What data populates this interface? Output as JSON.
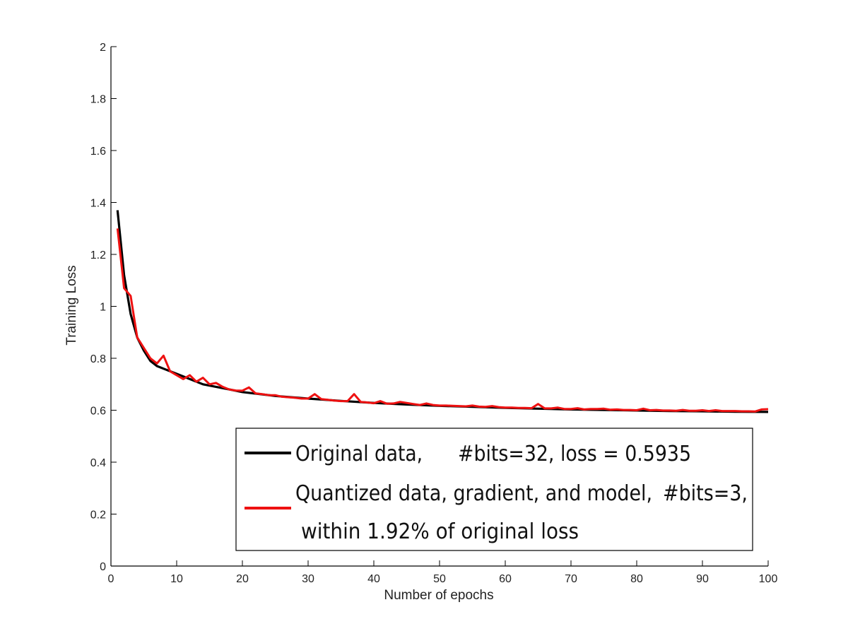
{
  "chart_data": {
    "type": "line",
    "title": "",
    "xlabel": "Number of epochs",
    "ylabel": "Training Loss",
    "xlim": [
      0,
      100
    ],
    "ylim": [
      0,
      2
    ],
    "x_ticks": [
      "0",
      "10",
      "20",
      "30",
      "40",
      "50",
      "60",
      "70",
      "80",
      "90",
      "100"
    ],
    "y_ticks": [
      "0",
      "0.2",
      "0.4",
      "0.6",
      "0.8",
      "1",
      "1.2",
      "1.4",
      "1.6",
      "1.8",
      "2"
    ],
    "grid": false,
    "legend_position": "bottom-right",
    "series": [
      {
        "name": "Original data, #bits=32, loss = 0.5935",
        "label_part1": "Original data,",
        "label_part2": "#bits=32, loss = 0.5935",
        "color": "#000000",
        "x": [
          1,
          2,
          3,
          4,
          5,
          6,
          7,
          8,
          10,
          12,
          14,
          16,
          18,
          20,
          25,
          30,
          35,
          40,
          45,
          50,
          55,
          60,
          65,
          70,
          75,
          80,
          85,
          90,
          95,
          100
        ],
        "values": [
          1.37,
          1.12,
          0.97,
          0.88,
          0.83,
          0.79,
          0.77,
          0.76,
          0.74,
          0.72,
          0.7,
          0.69,
          0.68,
          0.67,
          0.655,
          0.645,
          0.636,
          0.628,
          0.622,
          0.617,
          0.613,
          0.609,
          0.606,
          0.603,
          0.601,
          0.599,
          0.597,
          0.596,
          0.594,
          0.5935
        ]
      },
      {
        "name": "Quantized data, gradient, and model, #bits=3, within 1.92% of original loss",
        "label_line1": "Quantized data, gradient, and model,",
        "label_line1b": "#bits=3,",
        "label_line2": "within 1.92% of original loss",
        "color": "#ee1111",
        "x": [
          1,
          2,
          3,
          4,
          5,
          6,
          7,
          8,
          9,
          10,
          11,
          12,
          13,
          14,
          15,
          16,
          17,
          18,
          19,
          20,
          21,
          22,
          23,
          24,
          25,
          26,
          27,
          28,
          29,
          30,
          31,
          32,
          33,
          34,
          35,
          36,
          37,
          38,
          39,
          40,
          41,
          42,
          43,
          44,
          45,
          46,
          47,
          48,
          49,
          50,
          51,
          52,
          53,
          54,
          55,
          56,
          57,
          58,
          59,
          60,
          61,
          62,
          63,
          64,
          65,
          66,
          67,
          68,
          69,
          70,
          71,
          72,
          73,
          74,
          75,
          76,
          77,
          78,
          79,
          80,
          81,
          82,
          83,
          84,
          85,
          86,
          87,
          88,
          89,
          90,
          91,
          92,
          93,
          94,
          95,
          96,
          97,
          98,
          99,
          100
        ],
        "values": [
          1.3,
          1.07,
          1.04,
          0.88,
          0.84,
          0.8,
          0.78,
          0.81,
          0.75,
          0.735,
          0.72,
          0.735,
          0.71,
          0.725,
          0.7,
          0.705,
          0.69,
          0.68,
          0.676,
          0.675,
          0.688,
          0.665,
          0.662,
          0.658,
          0.658,
          0.652,
          0.65,
          0.648,
          0.645,
          0.645,
          0.662,
          0.643,
          0.64,
          0.637,
          0.635,
          0.635,
          0.662,
          0.632,
          0.63,
          0.627,
          0.635,
          0.625,
          0.626,
          0.632,
          0.628,
          0.624,
          0.62,
          0.626,
          0.62,
          0.618,
          0.618,
          0.617,
          0.616,
          0.615,
          0.618,
          0.614,
          0.613,
          0.616,
          0.612,
          0.61,
          0.61,
          0.609,
          0.609,
          0.608,
          0.624,
          0.607,
          0.607,
          0.61,
          0.605,
          0.605,
          0.608,
          0.603,
          0.605,
          0.605,
          0.606,
          0.602,
          0.603,
          0.601,
          0.601,
          0.6,
          0.606,
          0.6,
          0.601,
          0.599,
          0.599,
          0.598,
          0.601,
          0.598,
          0.598,
          0.6,
          0.597,
          0.6,
          0.597,
          0.597,
          0.597,
          0.596,
          0.596,
          0.595,
          0.603,
          0.604
        ]
      }
    ]
  }
}
